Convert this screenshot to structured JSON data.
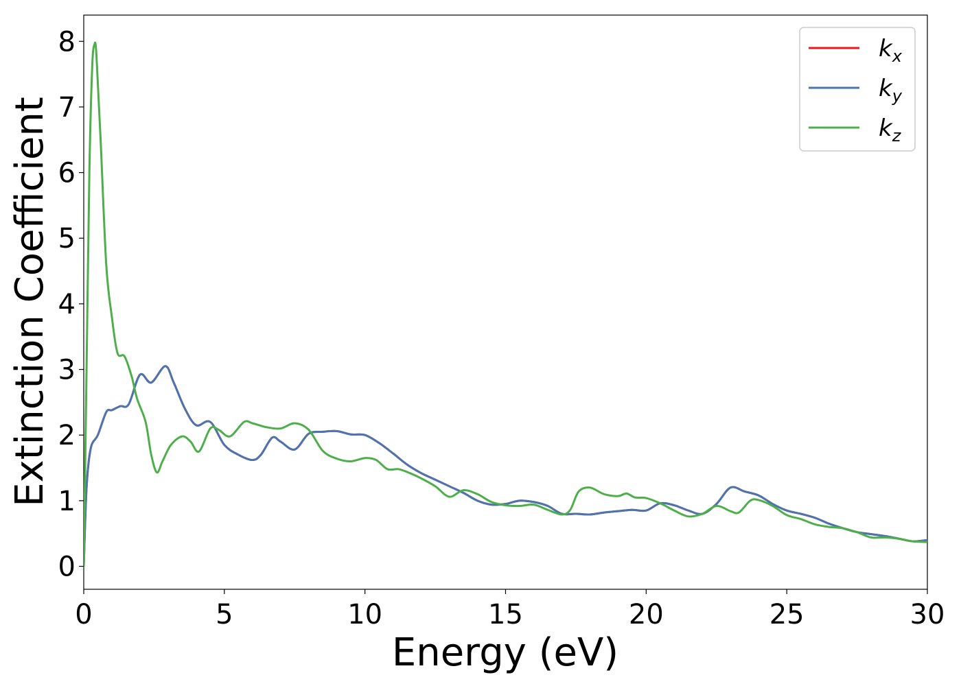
{
  "chart_data": {
    "type": "line",
    "title": "",
    "xlabel": "Energy (eV)",
    "ylabel": "Extinction Coefficient",
    "xlim": [
      0,
      30
    ],
    "ylim": [
      -0.35,
      8.4
    ],
    "xticks": [
      0,
      5,
      10,
      15,
      20,
      25,
      30
    ],
    "yticks": [
      0,
      1,
      2,
      3,
      4,
      5,
      6,
      7,
      8
    ],
    "grid": false,
    "legend_position": "top-right",
    "series": [
      {
        "name": "kx",
        "name_base": "k",
        "name_sub": "x",
        "color": "#e41a1c",
        "points": [
          [
            0,
            0
          ],
          [
            0.1,
            1.2
          ],
          [
            0.25,
            1.8
          ],
          [
            0.5,
            2.0
          ],
          [
            0.8,
            2.35
          ],
          [
            1.0,
            2.38
          ],
          [
            1.3,
            2.44
          ],
          [
            1.6,
            2.47
          ],
          [
            2.0,
            2.92
          ],
          [
            2.4,
            2.8
          ],
          [
            2.9,
            3.05
          ],
          [
            3.2,
            2.8
          ],
          [
            3.6,
            2.4
          ],
          [
            4.0,
            2.15
          ],
          [
            4.5,
            2.2
          ],
          [
            5.0,
            1.85
          ],
          [
            5.5,
            1.7
          ],
          [
            6.0,
            1.62
          ],
          [
            6.3,
            1.7
          ],
          [
            6.7,
            1.96
          ],
          [
            7.0,
            1.9
          ],
          [
            7.5,
            1.78
          ],
          [
            8.0,
            2.02
          ],
          [
            8.5,
            2.05
          ],
          [
            9.0,
            2.06
          ],
          [
            9.5,
            2.01
          ],
          [
            10.0,
            2.0
          ],
          [
            10.5,
            1.88
          ],
          [
            11.0,
            1.72
          ],
          [
            11.5,
            1.55
          ],
          [
            12.0,
            1.42
          ],
          [
            12.5,
            1.32
          ],
          [
            13.0,
            1.22
          ],
          [
            13.5,
            1.12
          ],
          [
            14.0,
            1.0
          ],
          [
            14.5,
            0.94
          ],
          [
            15.0,
            0.95
          ],
          [
            15.5,
            1.0
          ],
          [
            16.0,
            0.98
          ],
          [
            16.5,
            0.92
          ],
          [
            17.0,
            0.8
          ],
          [
            17.5,
            0.8
          ],
          [
            18.0,
            0.79
          ],
          [
            18.5,
            0.82
          ],
          [
            19.0,
            0.84
          ],
          [
            19.5,
            0.86
          ],
          [
            20.0,
            0.85
          ],
          [
            20.5,
            0.96
          ],
          [
            21.0,
            0.93
          ],
          [
            21.5,
            0.85
          ],
          [
            22.0,
            0.8
          ],
          [
            22.5,
            0.95
          ],
          [
            23.0,
            1.2
          ],
          [
            23.5,
            1.14
          ],
          [
            24.0,
            1.08
          ],
          [
            24.5,
            0.95
          ],
          [
            25.0,
            0.85
          ],
          [
            25.5,
            0.8
          ],
          [
            26.0,
            0.74
          ],
          [
            26.5,
            0.65
          ],
          [
            27.0,
            0.58
          ],
          [
            27.5,
            0.52
          ],
          [
            28.0,
            0.49
          ],
          [
            28.5,
            0.46
          ],
          [
            29.0,
            0.42
          ],
          [
            29.5,
            0.38
          ],
          [
            30.0,
            0.4
          ]
        ]
      },
      {
        "name": "ky",
        "name_base": "k",
        "name_sub": "y",
        "color": "#4a75b0",
        "points": [
          [
            0,
            0
          ],
          [
            0.1,
            1.2
          ],
          [
            0.25,
            1.8
          ],
          [
            0.5,
            2.0
          ],
          [
            0.8,
            2.35
          ],
          [
            1.0,
            2.38
          ],
          [
            1.3,
            2.44
          ],
          [
            1.6,
            2.47
          ],
          [
            2.0,
            2.92
          ],
          [
            2.4,
            2.8
          ],
          [
            2.9,
            3.05
          ],
          [
            3.2,
            2.8
          ],
          [
            3.6,
            2.4
          ],
          [
            4.0,
            2.15
          ],
          [
            4.5,
            2.2
          ],
          [
            5.0,
            1.85
          ],
          [
            5.5,
            1.7
          ],
          [
            6.0,
            1.62
          ],
          [
            6.3,
            1.7
          ],
          [
            6.7,
            1.96
          ],
          [
            7.0,
            1.9
          ],
          [
            7.5,
            1.78
          ],
          [
            8.0,
            2.02
          ],
          [
            8.5,
            2.05
          ],
          [
            9.0,
            2.06
          ],
          [
            9.5,
            2.01
          ],
          [
            10.0,
            2.0
          ],
          [
            10.5,
            1.88
          ],
          [
            11.0,
            1.72
          ],
          [
            11.5,
            1.55
          ],
          [
            12.0,
            1.42
          ],
          [
            12.5,
            1.32
          ],
          [
            13.0,
            1.22
          ],
          [
            13.5,
            1.12
          ],
          [
            14.0,
            1.0
          ],
          [
            14.5,
            0.94
          ],
          [
            15.0,
            0.95
          ],
          [
            15.5,
            1.0
          ],
          [
            16.0,
            0.98
          ],
          [
            16.5,
            0.92
          ],
          [
            17.0,
            0.8
          ],
          [
            17.5,
            0.8
          ],
          [
            18.0,
            0.79
          ],
          [
            18.5,
            0.82
          ],
          [
            19.0,
            0.84
          ],
          [
            19.5,
            0.86
          ],
          [
            20.0,
            0.85
          ],
          [
            20.5,
            0.96
          ],
          [
            21.0,
            0.93
          ],
          [
            21.5,
            0.85
          ],
          [
            22.0,
            0.8
          ],
          [
            22.5,
            0.95
          ],
          [
            23.0,
            1.2
          ],
          [
            23.5,
            1.14
          ],
          [
            24.0,
            1.08
          ],
          [
            24.5,
            0.95
          ],
          [
            25.0,
            0.85
          ],
          [
            25.5,
            0.8
          ],
          [
            26.0,
            0.74
          ],
          [
            26.5,
            0.65
          ],
          [
            27.0,
            0.58
          ],
          [
            27.5,
            0.52
          ],
          [
            28.0,
            0.49
          ],
          [
            28.5,
            0.46
          ],
          [
            29.0,
            0.42
          ],
          [
            29.5,
            0.38
          ],
          [
            30.0,
            0.4
          ]
        ]
      },
      {
        "name": "kz",
        "name_base": "k",
        "name_sub": "z",
        "color": "#4daf4a",
        "points": [
          [
            0,
            0
          ],
          [
            0.1,
            3.0
          ],
          [
            0.2,
            6.0
          ],
          [
            0.3,
            7.6
          ],
          [
            0.38,
            7.95
          ],
          [
            0.45,
            7.8
          ],
          [
            0.6,
            6.5
          ],
          [
            0.8,
            4.6
          ],
          [
            1.0,
            3.8
          ],
          [
            1.2,
            3.25
          ],
          [
            1.45,
            3.2
          ],
          [
            1.7,
            2.9
          ],
          [
            1.9,
            2.55
          ],
          [
            2.2,
            2.2
          ],
          [
            2.4,
            1.7
          ],
          [
            2.6,
            1.43
          ],
          [
            2.8,
            1.6
          ],
          [
            3.1,
            1.85
          ],
          [
            3.5,
            1.98
          ],
          [
            3.8,
            1.9
          ],
          [
            4.1,
            1.75
          ],
          [
            4.5,
            2.1
          ],
          [
            4.8,
            2.08
          ],
          [
            5.2,
            1.98
          ],
          [
            5.7,
            2.2
          ],
          [
            6.0,
            2.18
          ],
          [
            6.5,
            2.12
          ],
          [
            7.0,
            2.1
          ],
          [
            7.5,
            2.18
          ],
          [
            8.0,
            2.08
          ],
          [
            8.5,
            1.76
          ],
          [
            9.0,
            1.64
          ],
          [
            9.5,
            1.6
          ],
          [
            10.0,
            1.65
          ],
          [
            10.4,
            1.62
          ],
          [
            10.8,
            1.48
          ],
          [
            11.2,
            1.48
          ],
          [
            11.6,
            1.42
          ],
          [
            12.0,
            1.34
          ],
          [
            12.5,
            1.22
          ],
          [
            13.0,
            1.06
          ],
          [
            13.5,
            1.16
          ],
          [
            14.0,
            1.1
          ],
          [
            14.5,
            0.98
          ],
          [
            15.0,
            0.93
          ],
          [
            15.5,
            0.92
          ],
          [
            16.0,
            0.94
          ],
          [
            16.5,
            0.86
          ],
          [
            17.0,
            0.79
          ],
          [
            17.3,
            0.86
          ],
          [
            17.6,
            1.14
          ],
          [
            18.0,
            1.2
          ],
          [
            18.5,
            1.1
          ],
          [
            19.0,
            1.07
          ],
          [
            19.3,
            1.11
          ],
          [
            19.6,
            1.05
          ],
          [
            20.0,
            1.04
          ],
          [
            20.5,
            0.96
          ],
          [
            21.0,
            0.85
          ],
          [
            21.5,
            0.76
          ],
          [
            22.0,
            0.8
          ],
          [
            22.5,
            0.92
          ],
          [
            23.0,
            0.84
          ],
          [
            23.3,
            0.82
          ],
          [
            23.7,
            1.0
          ],
          [
            24.0,
            1.01
          ],
          [
            24.5,
            0.92
          ],
          [
            25.0,
            0.78
          ],
          [
            25.5,
            0.72
          ],
          [
            26.0,
            0.64
          ],
          [
            26.5,
            0.6
          ],
          [
            27.0,
            0.58
          ],
          [
            27.5,
            0.52
          ],
          [
            28.0,
            0.44
          ],
          [
            28.5,
            0.44
          ],
          [
            29.0,
            0.42
          ],
          [
            29.5,
            0.38
          ],
          [
            30.0,
            0.37
          ]
        ]
      }
    ]
  }
}
